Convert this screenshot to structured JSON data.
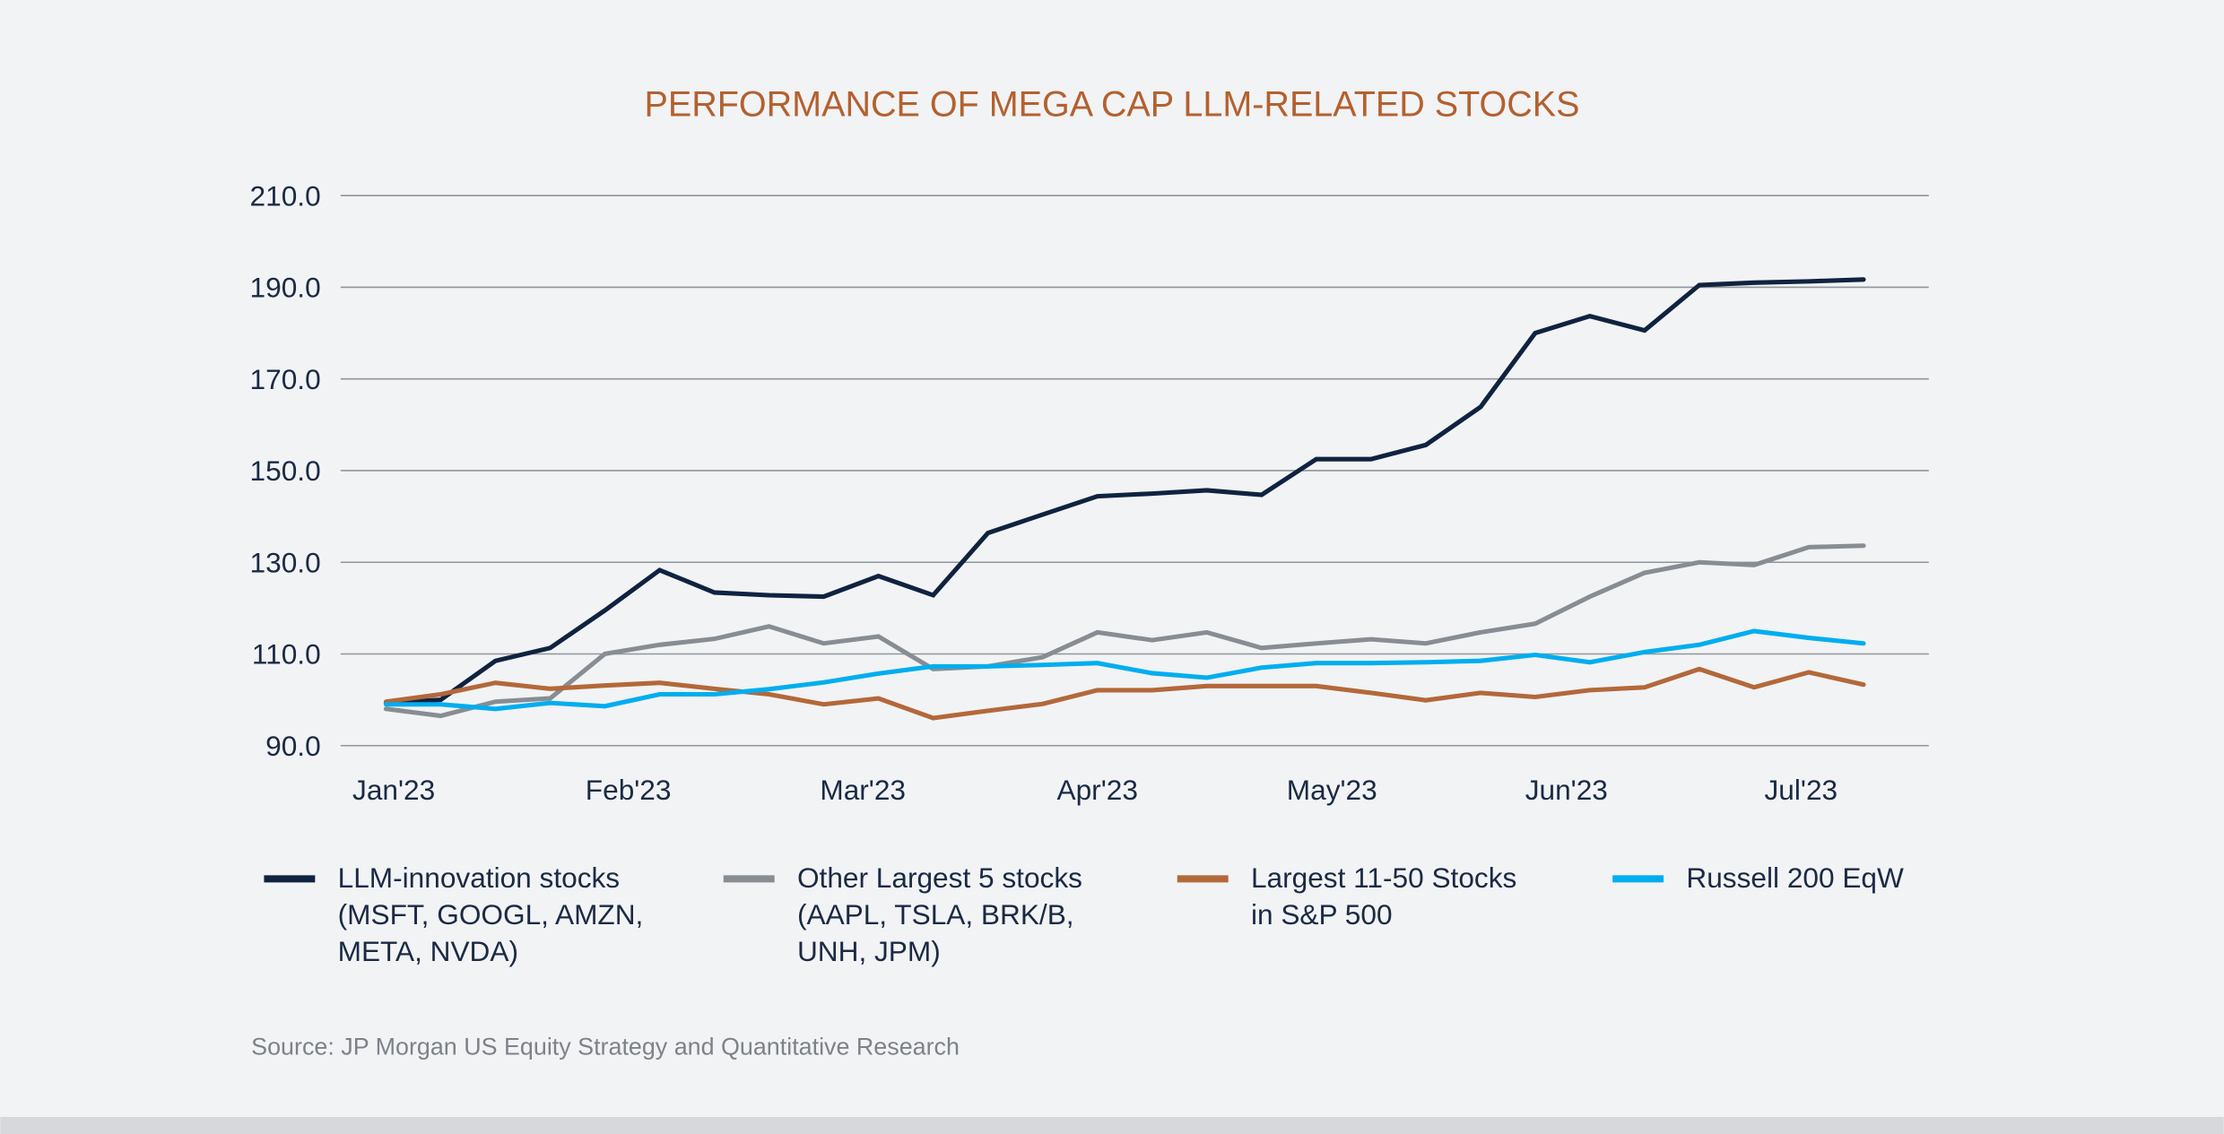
{
  "chart_data": {
    "type": "line",
    "title": "PERFORMANCE OF MEGA CAP LLM-RELATED STOCKS",
    "xlabel": "",
    "ylabel": "",
    "ylim": [
      90,
      210
    ],
    "yticks": [
      "210.0",
      "190.0",
      "170.0",
      "150.0",
      "130.0",
      "110.0",
      "90.0"
    ],
    "ytick_values": [
      210,
      190,
      170,
      150,
      130,
      110,
      90
    ],
    "xticks": [
      "Jan'23",
      "Feb'23",
      "Mar'23",
      "Apr'23",
      "May'23",
      "Jun'23",
      "Jul'23"
    ],
    "xtick_dates": [
      "2023-01-02",
      "2023-02-01",
      "2023-03-03",
      "2023-04-02",
      "2023-05-02",
      "2023-06-01",
      "2023-07-01"
    ],
    "grid": true,
    "legend_position": "bottom",
    "x": [
      "2023-01-01",
      "2023-01-08",
      "2023-01-15",
      "2023-01-22",
      "2023-01-29",
      "2023-02-05",
      "2023-02-12",
      "2023-02-19",
      "2023-02-26",
      "2023-03-05",
      "2023-03-12",
      "2023-03-19",
      "2023-03-26",
      "2023-04-02",
      "2023-04-09",
      "2023-04-16",
      "2023-04-23",
      "2023-04-30",
      "2023-05-07",
      "2023-05-14",
      "2023-05-21",
      "2023-05-28",
      "2023-06-04",
      "2023-06-11",
      "2023-06-18",
      "2023-06-25",
      "2023-07-02",
      "2023-07-09"
    ],
    "series": [
      {
        "name": "LLM-innovation stocks (MSFT, GOOGL, AMZN, META, NVDA)",
        "legend_lines": [
          "LLM-innovation stocks",
          "(MSFT, GOOGL, AMZN,",
          "META, NVDA)"
        ],
        "color": "#0f2340",
        "values": [
          99.3,
          100,
          108.5,
          111.3,
          119.5,
          128.3,
          123.4,
          122.8,
          122.5,
          127,
          122.8,
          136.4,
          140.4,
          144.4,
          145,
          145.7,
          144.7,
          152.5,
          152.5,
          155.6,
          163.9,
          180,
          183.7,
          180.6,
          190.5,
          191,
          191.3,
          191.7
        ]
      },
      {
        "name": "Other Largest 5 stocks (AAPL, TSLA, BRK/B, UNH, JPM)",
        "legend_lines": [
          "Other Largest 5 stocks",
          "(AAPL, TSLA, BRK/B,",
          "UNH, JPM)"
        ],
        "color": "#878d93",
        "values": [
          98,
          96.5,
          99.6,
          100.3,
          110,
          112,
          113.3,
          116,
          112.3,
          113.8,
          106.7,
          107.3,
          109.3,
          114.7,
          113,
          114.7,
          111.3,
          112.3,
          113.2,
          112.3,
          114.7,
          116.6,
          122.5,
          127.7,
          130,
          129.4,
          133.3,
          133.6
        ]
      },
      {
        "name": "Largest 11-50 Stocks in S&P 500",
        "legend_lines": [
          "Largest 11-50 Stocks",
          "in S&P 500"
        ],
        "color": "#b3683a",
        "values": [
          99.6,
          101.2,
          103.7,
          102.4,
          103.1,
          103.7,
          102.4,
          101.2,
          99,
          100.3,
          96,
          97.6,
          99.1,
          102.1,
          102.1,
          103,
          103,
          103,
          101.5,
          99.9,
          101.5,
          100.6,
          102.1,
          102.7,
          106.7,
          102.7,
          106,
          103.3
        ]
      },
      {
        "name": "Russell 200 EqW",
        "legend_lines": [
          "Russell 200 EqW"
        ],
        "color": "#00aeef",
        "values": [
          99,
          99,
          98,
          99.3,
          98.6,
          101.2,
          101.2,
          102.3,
          103.8,
          105.7,
          107.3,
          107.3,
          107.6,
          108,
          105.8,
          104.8,
          107,
          108,
          108,
          108.2,
          108.5,
          109.8,
          108.2,
          110.4,
          112,
          115,
          113.5,
          112.3
        ]
      }
    ]
  },
  "source": "Source: JP Morgan US Equity Strategy and Quantitative Research"
}
